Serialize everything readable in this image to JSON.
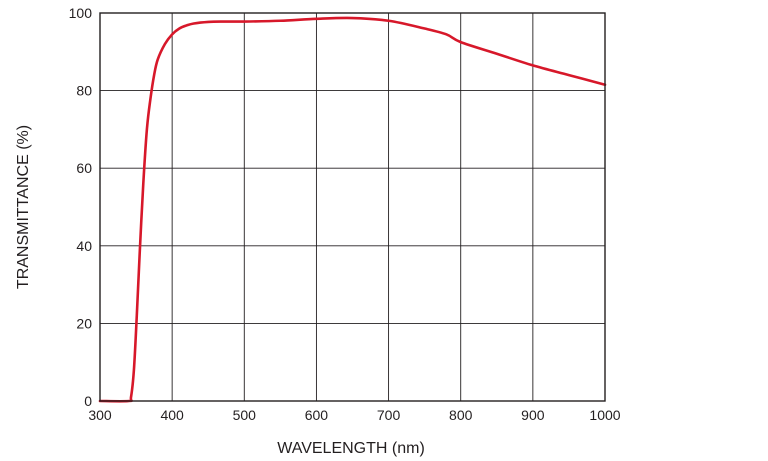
{
  "chart_data": {
    "type": "line",
    "title": "",
    "xlabel": "WAVELENGTH (nm)",
    "ylabel": "TRANSMITTANCE (%)",
    "xlim": [
      300,
      1000
    ],
    "ylim": [
      0,
      100
    ],
    "xticks": [
      300,
      400,
      500,
      600,
      700,
      800,
      900,
      1000
    ],
    "yticks": [
      0,
      20,
      40,
      60,
      80,
      100
    ],
    "grid": true,
    "legend": "none",
    "line_color": "#d7182a",
    "series": [
      {
        "x": [
          300,
          340,
          343,
          347,
          351,
          355,
          360,
          365,
          370,
          375,
          380,
          390,
          400,
          410,
          420,
          430,
          450,
          470,
          500,
          550,
          600,
          650,
          700,
          750,
          780,
          800,
          850,
          900,
          950,
          1000
        ],
        "y": [
          0,
          0,
          1,
          8,
          22,
          38,
          56,
          70,
          78,
          84,
          88,
          92,
          94.5,
          96,
          96.8,
          97.3,
          97.7,
          97.8,
          97.8,
          98,
          98.5,
          98.7,
          98,
          96,
          94.5,
          92.5,
          89.5,
          86.5,
          84,
          81.5
        ]
      }
    ]
  }
}
